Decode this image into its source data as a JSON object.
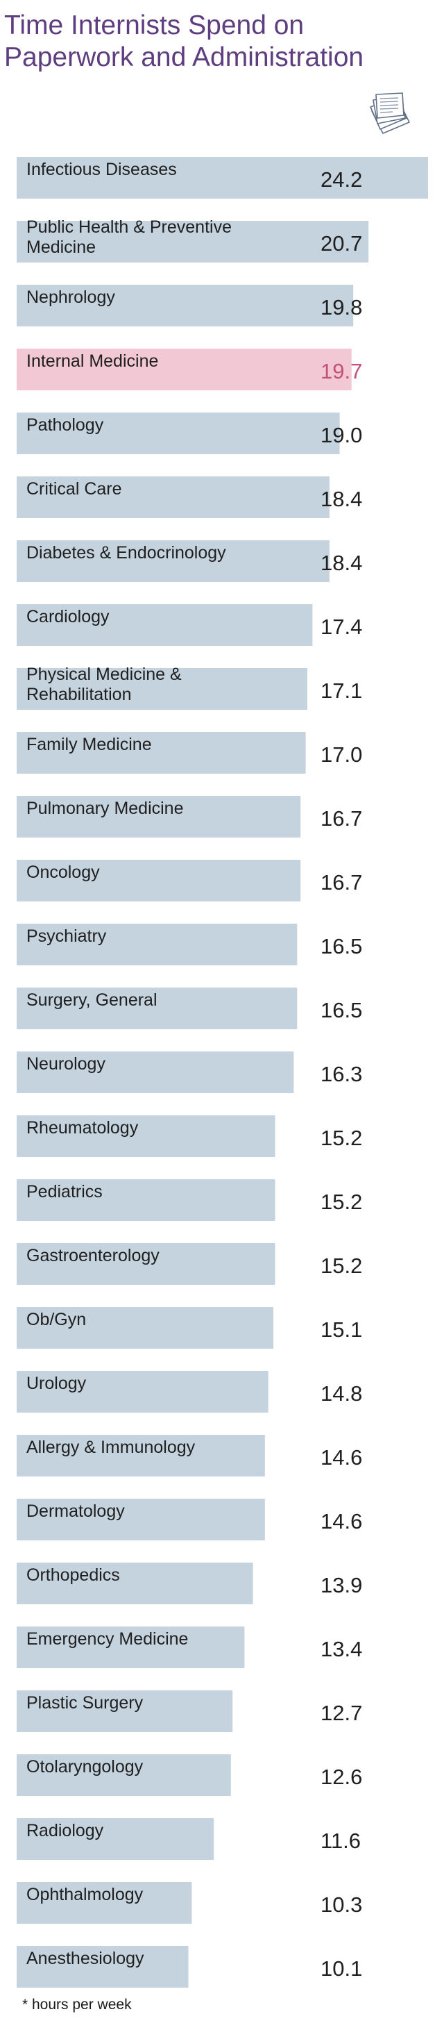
{
  "title": "Time Internists Spend on Paperwork and Administration",
  "footnote": "* hours per week",
  "colors": {
    "bar": "#c5d3de",
    "highlight_bar": "#f1c8d3",
    "label_text": "#1f1f1f",
    "value_text": "#1f1f1f",
    "highlight_value_text": "#c4507c",
    "title": "#5e3d80"
  },
  "icon": "paper-stack-icon",
  "chart_data": {
    "type": "bar",
    "orientation": "horizontal",
    "title": "Time Internists Spend on Paperwork and Administration",
    "xlabel": "",
    "ylabel": "",
    "xlim": [
      0,
      24.2
    ],
    "grid": false,
    "legend": "none",
    "highlight": "Internal Medicine",
    "unit_note": "* hours per week",
    "categories": [
      "Infectious Diseases",
      "Public Health & Preventive Medicine",
      "Nephrology",
      "Internal Medicine",
      "Pathology",
      "Critical Care",
      "Diabetes & Endocrinology",
      "Cardiology",
      "Physical Medicine & Rehabilitation",
      "Family Medicine",
      "Pulmonary Medicine",
      "Oncology",
      "Psychiatry",
      "Surgery, General",
      "Neurology",
      "Rheumatology",
      "Pediatrics",
      "Gastroenterology",
      "Ob/Gyn",
      "Urology",
      "Allergy & Immunology",
      "Dermatology",
      "Orthopedics",
      "Emergency Medicine",
      "Plastic Surgery",
      "Otolaryngology",
      "Radiology",
      "Ophthalmology",
      "Anesthesiology"
    ],
    "values": [
      24.2,
      20.7,
      19.8,
      19.7,
      19.0,
      18.4,
      18.4,
      17.4,
      17.1,
      17.0,
      16.7,
      16.7,
      16.5,
      16.5,
      16.3,
      15.2,
      15.2,
      15.2,
      15.1,
      14.8,
      14.6,
      14.6,
      13.9,
      13.4,
      12.7,
      12.6,
      11.6,
      10.3,
      10.1
    ],
    "value_labels": [
      "24.2",
      "20.7",
      "19.8",
      "19.7",
      "19.0",
      "18.4",
      "18.4",
      "17.4",
      "17.1",
      "17.0",
      "16.7",
      "16.7",
      "16.5",
      "16.5",
      "16.3",
      "15.2",
      "15.2",
      "15.2",
      "15.1",
      "14.8",
      "14.6",
      "14.6",
      "13.9",
      "13.4",
      "12.7",
      "12.6",
      "11.6",
      "10.3",
      "10.1"
    ]
  }
}
